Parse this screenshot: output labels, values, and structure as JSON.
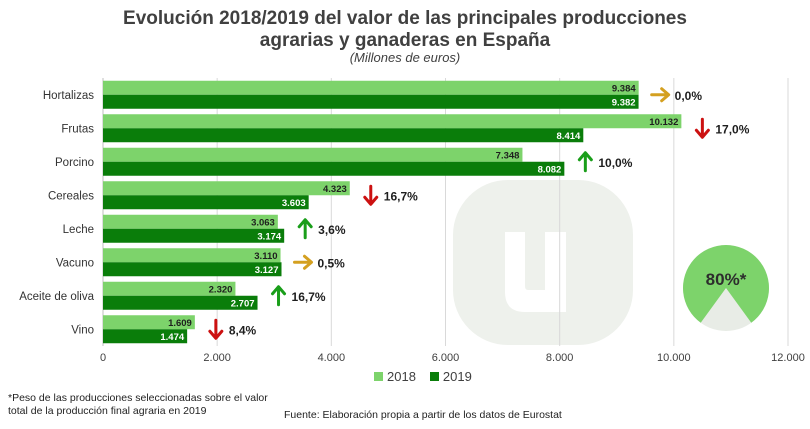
{
  "chart_data": {
    "type": "bar",
    "orientation": "horizontal",
    "title": "Evolución 2018/2019 del valor de las principales producciones agrarias y ganaderas en España",
    "title_line1": "Evolución 2018/2019 del valor de las principales producciones",
    "title_line2": "agrarias y ganaderas en España",
    "subtitle": "(Millones de euros)",
    "categories": [
      "Hortalizas",
      "Frutas",
      "Porcino",
      "Cereales",
      "Leche",
      "Vacuno",
      "Aceite de oliva",
      "Vino"
    ],
    "series": [
      {
        "name": "2018",
        "color": "#7dd36b",
        "values": [
          9384,
          10132,
          7348,
          4323,
          3063,
          3110,
          2320,
          1609
        ],
        "labels": [
          "9.384",
          "10.132",
          "7.348",
          "4.323",
          "3.063",
          "3.110",
          "2.320",
          "1.609"
        ]
      },
      {
        "name": "2019",
        "color": "#0a7d0a",
        "values": [
          9382,
          8414,
          8082,
          3603,
          3174,
          3127,
          2707,
          1474
        ],
        "labels": [
          "9.382",
          "8.414",
          "8.082",
          "3.603",
          "3.174",
          "3.127",
          "2.707",
          "1.474"
        ]
      }
    ],
    "changes": [
      {
        "text": "0,0%",
        "direction": "flat"
      },
      {
        "text": "17,0%",
        "direction": "down"
      },
      {
        "text": "10,0%",
        "direction": "up"
      },
      {
        "text": "16,7%",
        "direction": "down"
      },
      {
        "text": "3,6%",
        "direction": "up"
      },
      {
        "text": "0,5%",
        "direction": "flat"
      },
      {
        "text": "16,7%",
        "direction": "up"
      },
      {
        "text": "8,4%",
        "direction": "down"
      }
    ],
    "change_colors": {
      "up": "#1a9e1a",
      "down": "#cc1111",
      "flat": "#d4a020"
    },
    "xlim": [
      0,
      12000
    ],
    "xticks": [
      0,
      2000,
      4000,
      6000,
      8000,
      10000,
      12000
    ],
    "xtick_labels": [
      "0",
      "2.000",
      "4.000",
      "6.000",
      "8.000",
      "10.000",
      "12.000"
    ],
    "grid": true,
    "legend_position": "bottom",
    "pie": {
      "value": 80,
      "label": "80%*",
      "color": "#7dd36b",
      "rest_color": "#e8ece6"
    }
  },
  "footnote": "*Peso de las producciones seleccionadas sobre el valor total de la producción final agraria en 2019",
  "source": "Fuente: Elaboración propia a partir de los datos de Eurostat",
  "watermark": "u-logo-icon"
}
